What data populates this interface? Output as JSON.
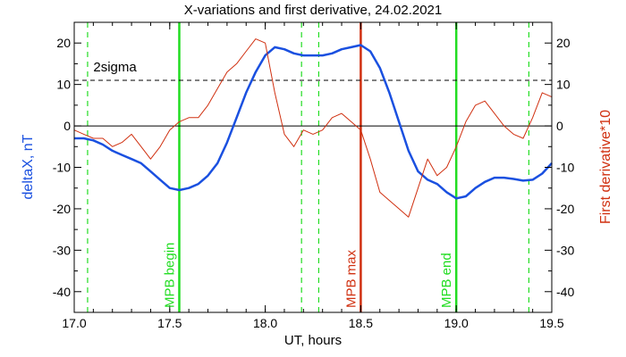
{
  "chart_data": {
    "type": "line",
    "title": "X-variations and first derivative, 24.02.2021",
    "xlabel": "UT, hours",
    "ylabel_left": "deltaX, nT",
    "ylabel_right": "First derivative*10",
    "xlim": [
      17.0,
      19.5
    ],
    "ylim": [
      -45,
      25
    ],
    "x_ticks": [
      "17.0",
      "17.5",
      "18.0",
      "18.5",
      "19.0",
      "19.5"
    ],
    "y_ticks": [
      "20",
      "10",
      "0",
      "-10",
      "-20",
      "-30",
      "-40"
    ],
    "colors": {
      "deltaX": "#1a50e0",
      "derivative": "#d03010",
      "marker_green": "#22dd22",
      "marker_red": "#d03010",
      "reference": "#000000"
    },
    "threshold": {
      "label": "2sigma",
      "value": 11
    },
    "series": [
      {
        "key": "deltaX",
        "x": [
          17.0,
          17.05,
          17.1,
          17.15,
          17.2,
          17.25,
          17.3,
          17.35,
          17.4,
          17.45,
          17.5,
          17.55,
          17.6,
          17.65,
          17.7,
          17.75,
          17.8,
          17.85,
          17.9,
          17.95,
          18.0,
          18.05,
          18.1,
          18.15,
          18.2,
          18.25,
          18.3,
          18.35,
          18.4,
          18.45,
          18.5,
          18.55,
          18.6,
          18.65,
          18.7,
          18.75,
          18.8,
          18.85,
          18.9,
          18.95,
          19.0,
          19.05,
          19.1,
          19.15,
          19.2,
          19.25,
          19.3,
          19.35,
          19.4,
          19.45,
          19.5
        ],
        "values": [
          -3,
          -3,
          -3.5,
          -4.5,
          -6,
          -7,
          -8,
          -9,
          -11,
          -13,
          -15,
          -15.5,
          -15,
          -14,
          -12,
          -9,
          -4,
          2,
          8,
          13,
          17,
          19,
          18.5,
          17.5,
          17,
          17,
          17,
          17.5,
          18.5,
          19,
          19.5,
          18,
          14,
          8,
          1,
          -6,
          -11,
          -13,
          -14,
          -16,
          -17.5,
          -17,
          -15,
          -13.5,
          -12.5,
          -12.5,
          -12.8,
          -13.2,
          -13,
          -11.5,
          -9
        ]
      },
      {
        "key": "derivative",
        "x": [
          17.0,
          17.05,
          17.1,
          17.15,
          17.2,
          17.25,
          17.3,
          17.35,
          17.4,
          17.45,
          17.5,
          17.55,
          17.6,
          17.65,
          17.7,
          17.75,
          17.8,
          17.85,
          17.9,
          17.95,
          18.0,
          18.05,
          18.1,
          18.15,
          18.2,
          18.25,
          18.3,
          18.35,
          18.4,
          18.45,
          18.5,
          18.55,
          18.6,
          18.65,
          18.7,
          18.75,
          18.8,
          18.85,
          18.9,
          18.95,
          19.0,
          19.05,
          19.1,
          19.15,
          19.2,
          19.25,
          19.3,
          19.35,
          19.4,
          19.45,
          19.5
        ],
        "values": [
          -1,
          -2,
          -3,
          -3,
          -5,
          -4,
          -2,
          -5,
          -8,
          -5,
          -1,
          1,
          2,
          2,
          5,
          9,
          13,
          15,
          18,
          21,
          20,
          8,
          -2,
          -5,
          -1,
          -2,
          -1,
          2,
          3,
          1,
          -1,
          -8,
          -16,
          -18,
          -20,
          -22,
          -15,
          -8,
          -12,
          -10,
          -5,
          1,
          5,
          6,
          3,
          0,
          -2,
          -3,
          2,
          8,
          7
        ]
      }
    ],
    "markers": [
      {
        "x": 17.07,
        "style": "dashed",
        "color": "green",
        "label": ""
      },
      {
        "x": 17.55,
        "style": "solid",
        "color": "green",
        "label": "MPB begin"
      },
      {
        "x": 18.19,
        "style": "dashed",
        "color": "green",
        "label": ""
      },
      {
        "x": 18.28,
        "style": "dashed",
        "color": "green",
        "label": ""
      },
      {
        "x": 18.5,
        "style": "solid",
        "color": "red",
        "label": "MPB max"
      },
      {
        "x": 19.0,
        "style": "solid",
        "color": "green",
        "label": "MPB end"
      },
      {
        "x": 19.38,
        "style": "dashed",
        "color": "green",
        "label": ""
      }
    ]
  }
}
